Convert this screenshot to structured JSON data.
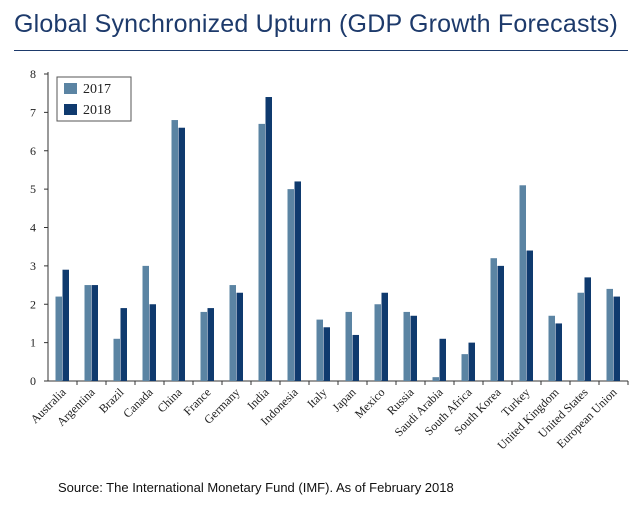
{
  "title": "Global Synchronized Upturn (GDP Growth Forecasts)",
  "source": "Source: The International Monetary Fund (IMF). As of February 2018",
  "chart_data": {
    "type": "bar",
    "title": "Global Synchronized Upturn (GDP Growth Forecasts)",
    "xlabel": "",
    "ylabel": "",
    "ylim": [
      0,
      8
    ],
    "yticks": [
      "0",
      "1",
      "2",
      "3",
      "4",
      "5",
      "6",
      "7",
      "8"
    ],
    "grid": false,
    "legend_position": "top-left",
    "categories": [
      "Australia",
      "Argentina",
      "Brazil",
      "Canada",
      "China",
      "France",
      "Germany",
      "India",
      "Indonesia",
      "Italy",
      "Japan",
      "Mexico",
      "Russia",
      "Saudi Arabia",
      "South Africa",
      "South Korea",
      "Turkey",
      "United Kingdom",
      "United States",
      "European Union"
    ],
    "series": [
      {
        "name": "2017",
        "color": "#5b84a3",
        "values": [
          2.2,
          2.5,
          1.1,
          3.0,
          6.8,
          1.8,
          2.5,
          6.7,
          5.0,
          1.6,
          1.8,
          2.0,
          1.8,
          0.1,
          0.7,
          3.2,
          5.1,
          1.7,
          2.3,
          2.4
        ]
      },
      {
        "name": "2018",
        "color": "#0f3a6e",
        "values": [
          2.9,
          2.5,
          1.9,
          2.0,
          6.6,
          1.9,
          2.3,
          7.4,
          5.2,
          1.4,
          1.2,
          2.3,
          1.7,
          1.1,
          1.0,
          3.0,
          3.4,
          1.5,
          2.7,
          2.2
        ]
      }
    ]
  }
}
